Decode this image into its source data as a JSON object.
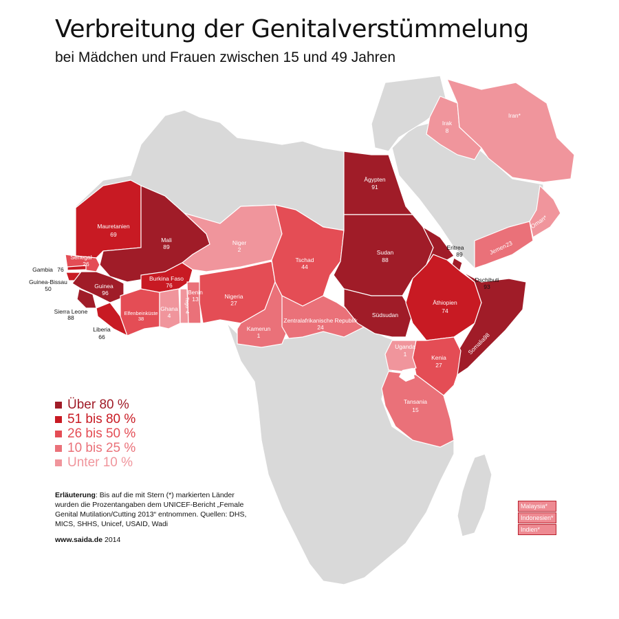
{
  "title": "Verbreitung der Genitalverstümmelung",
  "subtitle": "bei Mädchen und Frauen zwischen 15 und 49 Jahren",
  "colors": {
    "ueber80": "#a01c28",
    "b51_80": "#c81a23",
    "b26_50": "#e44d55",
    "b10_25": "#ea7179",
    "unter10": "#f0959c",
    "land": "#d9d9d9"
  },
  "legend": [
    {
      "label": "Über 80 %",
      "color": "#a01c28"
    },
    {
      "label": "51 bis 80 %",
      "color": "#c81a23"
    },
    {
      "label": "26 bis 50 %",
      "color": "#e44d55"
    },
    {
      "label": "10 bis 25 %",
      "color": "#ea7179"
    },
    {
      "label": "Unter 10 %",
      "color": "#f0959c"
    }
  ],
  "note": {
    "bold": "Erläuterung",
    "text": ": Bis auf die mit Stern (*) markierten Länder wurden die Prozentangaben dem UNICEF-Bericht „Female Genital Mutilation/Cutting 2013“ entnommen. Quellen: DHS, MICS, SHHS, Unicef, USAID, Wadi"
  },
  "footer": {
    "bold": "www.saida.de",
    "text": " 2014"
  },
  "asia_box": [
    "Malaysia*",
    "Indonesien*",
    "Indien*"
  ],
  "countries": {
    "mauretanien": {
      "name": "Mauretanien",
      "value": "69"
    },
    "mali": {
      "name": "Mali",
      "value": "89"
    },
    "senegal": {
      "name": "Senegal",
      "value": "26"
    },
    "gambia": {
      "name": "Gambia",
      "value": "76"
    },
    "guinea_bissau": {
      "name": "Guinea-Bissau",
      "value": "50"
    },
    "guinea": {
      "name": "Guinea",
      "value": "96"
    },
    "sierra_leone": {
      "name": "Sierra Leone",
      "value": "88"
    },
    "liberia": {
      "name": "Liberia",
      "value": "66"
    },
    "elfenbeinkueste": {
      "name": "Elfenbeinküste",
      "value": "38"
    },
    "burkina_faso": {
      "name": "Burkina Faso",
      "value": "76"
    },
    "ghana": {
      "name": "Ghana",
      "value": "4"
    },
    "togo": {
      "name": "Togo",
      "value": "4"
    },
    "benin": {
      "name": "Benin",
      "value": "13"
    },
    "niger": {
      "name": "Niger",
      "value": "2"
    },
    "nigeria": {
      "name": "Nigeria",
      "value": "27"
    },
    "kamerun": {
      "name": "Kamerun",
      "value": "1"
    },
    "tschad": {
      "name": "Tschad",
      "value": "44"
    },
    "zar": {
      "name": "Zentralafrikanische Republik",
      "value": "24"
    },
    "aegypten": {
      "name": "Ägypten",
      "value": "91"
    },
    "sudan": {
      "name": "Sudan",
      "value": "88"
    },
    "suedsudan": {
      "name": "Südsudan",
      "value": ""
    },
    "eritrea": {
      "name": "Eritrea",
      "value": "89"
    },
    "dschibuti": {
      "name": "Dschibuti",
      "value": "93"
    },
    "aethiopien": {
      "name": "Äthiopien",
      "value": "74"
    },
    "somalia": {
      "name": "Somalia",
      "value": "98"
    },
    "kenia": {
      "name": "Kenia",
      "value": "27"
    },
    "uganda": {
      "name": "Uganda",
      "value": "1"
    },
    "tansania": {
      "name": "Tansania",
      "value": "15"
    },
    "irak": {
      "name": "Irak",
      "value": "8"
    },
    "iran": {
      "name": "Iran*",
      "value": ""
    },
    "jemen": {
      "name": "Jemen",
      "value": "23"
    },
    "oman": {
      "name": "Oman*",
      "value": ""
    }
  }
}
